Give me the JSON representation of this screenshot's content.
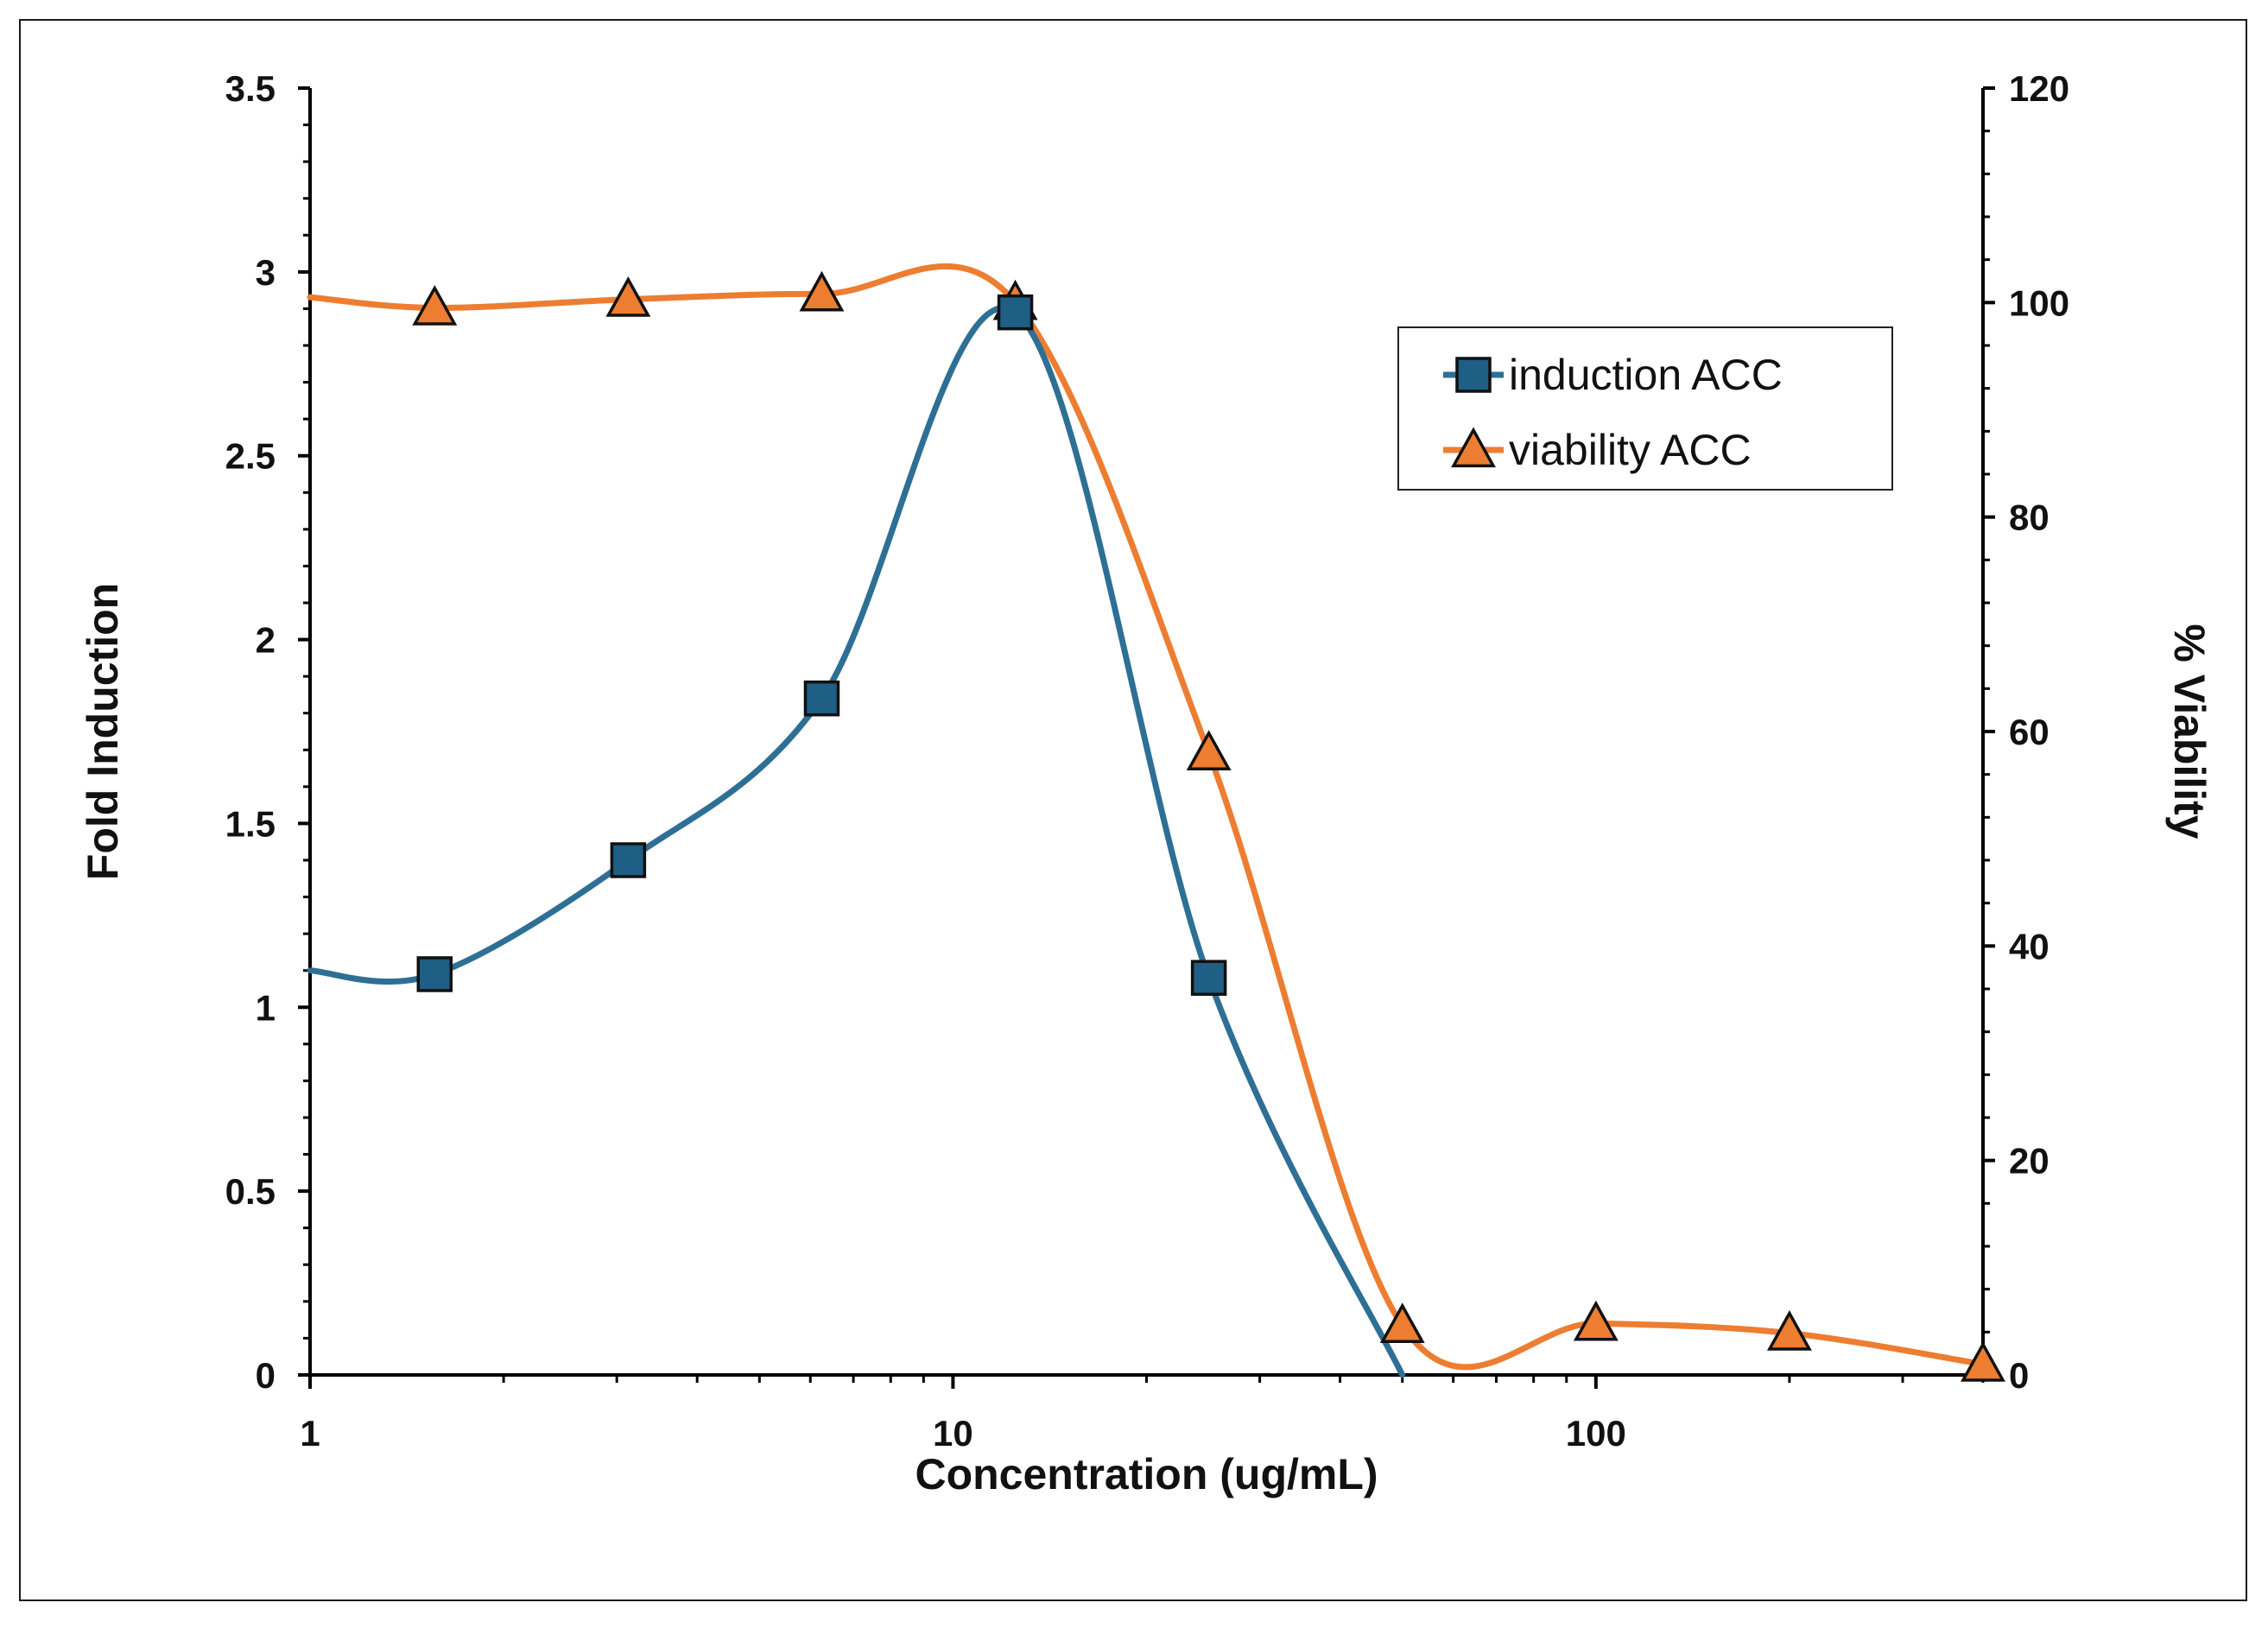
{
  "chart_data": {
    "type": "line",
    "title": "",
    "xlabel": "Concentration (ug/mL)",
    "ylabel": "Fold Induction",
    "y2label": "% Viability",
    "xscale": "log",
    "xlim": [
      1,
      400
    ],
    "ylim": [
      0,
      3.5
    ],
    "y2lim": [
      0,
      120
    ],
    "x_ticks": [
      1,
      10,
      100
    ],
    "x_tick_labels": [
      "1",
      "10",
      "100"
    ],
    "y_ticks": [
      0,
      0.5,
      1,
      1.5,
      2,
      2.5,
      3,
      3.5
    ],
    "y_tick_labels": [
      "0",
      "0.5",
      "1",
      "1.5",
      "2",
      "2.5",
      "3",
      "3.5"
    ],
    "y2_ticks": [
      0,
      20,
      40,
      60,
      80,
      100,
      120
    ],
    "y2_tick_labels": [
      "0",
      "20",
      "40",
      "60",
      "80",
      "100",
      "120"
    ],
    "legend_position": "top-right",
    "series": [
      {
        "name": "induction ACC",
        "axis": "left",
        "marker": "square",
        "color": "#2E6F95",
        "marker_fill": "#1F5E85",
        "x": [
          1.5625,
          3.125,
          6.25,
          12.5,
          25
        ],
        "y": [
          1.09,
          1.4,
          1.84,
          2.89,
          1.08
        ],
        "curve_x": [
          1,
          1.5625,
          3.125,
          6.25,
          12.5,
          25,
          50
        ],
        "curve_y": [
          1.1,
          1.09,
          1.4,
          1.84,
          2.89,
          1.08,
          0.0
        ]
      },
      {
        "name": "viability  ACC",
        "axis": "right",
        "marker": "triangle",
        "color": "#ED7D31",
        "marker_fill": "#ED7D31",
        "x": [
          1.5625,
          3.125,
          6.25,
          12.5,
          25,
          50,
          100,
          200,
          400
        ],
        "y": [
          99.5,
          100.3,
          100.8,
          100.0,
          58.0,
          4.6,
          4.8,
          3.9,
          1.0
        ],
        "curve_x": [
          1,
          1.5625,
          3.125,
          6.25,
          12.5,
          25,
          50,
          100,
          200,
          400
        ],
        "curve_y": [
          100.5,
          99.5,
          100.3,
          100.8,
          100.0,
          58.0,
          4.6,
          4.8,
          3.9,
          1.0
        ]
      }
    ]
  }
}
